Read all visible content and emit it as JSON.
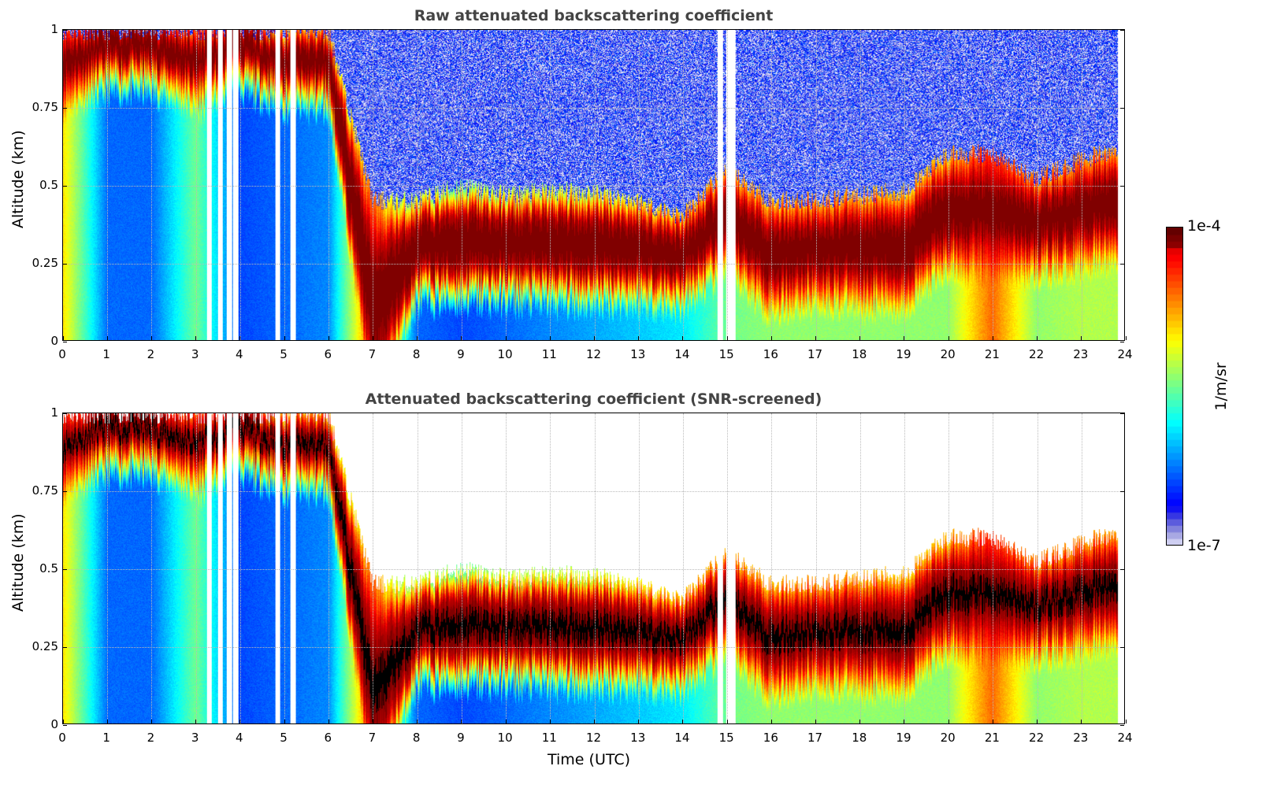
{
  "chart_data": [
    {
      "type": "heatmap",
      "title": "Raw attenuated backscattering coefficient",
      "xlabel": "",
      "ylabel": "Altitude (km)",
      "xlim": [
        0,
        24
      ],
      "ylim": [
        0,
        1
      ],
      "xticks": [
        0,
        1,
        2,
        3,
        4,
        5,
        6,
        7,
        8,
        9,
        10,
        11,
        12,
        13,
        14,
        15,
        16,
        17,
        18,
        19,
        20,
        21,
        22,
        23,
        24
      ],
      "yticks": [
        "0",
        "0.25",
        "0.5",
        "0.75",
        "1"
      ],
      "screened": false,
      "grid": true
    },
    {
      "type": "heatmap",
      "title": "Attenuated backscattering coefficient (SNR-screened)",
      "xlabel": "Time (UTC)",
      "ylabel": "Altitude (km)",
      "xlim": [
        0,
        24
      ],
      "ylim": [
        0,
        1
      ],
      "xticks": [
        0,
        1,
        2,
        3,
        4,
        5,
        6,
        7,
        8,
        9,
        10,
        11,
        12,
        13,
        14,
        15,
        16,
        17,
        18,
        19,
        20,
        21,
        22,
        23,
        24
      ],
      "yticks": [
        "0",
        "0.25",
        "0.5",
        "0.75",
        "1"
      ],
      "screened": true,
      "grid": true
    }
  ],
  "field": {
    "hours": [
      0,
      1,
      2,
      3,
      4,
      5,
      6,
      7,
      8,
      9,
      10,
      11,
      12,
      13,
      14,
      15,
      16,
      17,
      18,
      19,
      20,
      21,
      22,
      23,
      24
    ],
    "layer_center_km": [
      0.9,
      0.95,
      0.95,
      0.9,
      0.95,
      0.9,
      0.9,
      0.1,
      0.3,
      0.32,
      0.31,
      0.31,
      0.31,
      0.3,
      0.27,
      0.4,
      0.28,
      0.3,
      0.3,
      0.3,
      0.42,
      0.42,
      0.38,
      0.42,
      0.45
    ],
    "layer_top_km": [
      1,
      1,
      1,
      1,
      1,
      1,
      1,
      0.45,
      0.45,
      0.5,
      0.47,
      0.48,
      0.48,
      0.45,
      0.4,
      0.55,
      0.45,
      0.45,
      0.47,
      0.48,
      0.6,
      0.6,
      0.52,
      0.58,
      0.62
    ],
    "surface_log10": [
      -5,
      -6.3,
      -6.3,
      -5.5,
      -6.4,
      -6.3,
      -6.2,
      -4.5,
      -6.3,
      -6.4,
      -6.3,
      -6.2,
      -6.1,
      -6,
      -5.9,
      -5.5,
      -5.4,
      -5.4,
      -5.4,
      -5.4,
      -5.4,
      -4.6,
      -5.4,
      -5.3,
      -5.3
    ],
    "gaps_h": [
      3.3,
      3.55,
      3.75,
      3.9,
      4.85,
      5.2,
      14.85,
      15.05,
      15.15
    ]
  },
  "colorbar": {
    "label": "1/m/sr",
    "max_label": "1e-4",
    "min_label": "1e-7",
    "vmin_log10": -7,
    "vmax_log10": -4
  }
}
